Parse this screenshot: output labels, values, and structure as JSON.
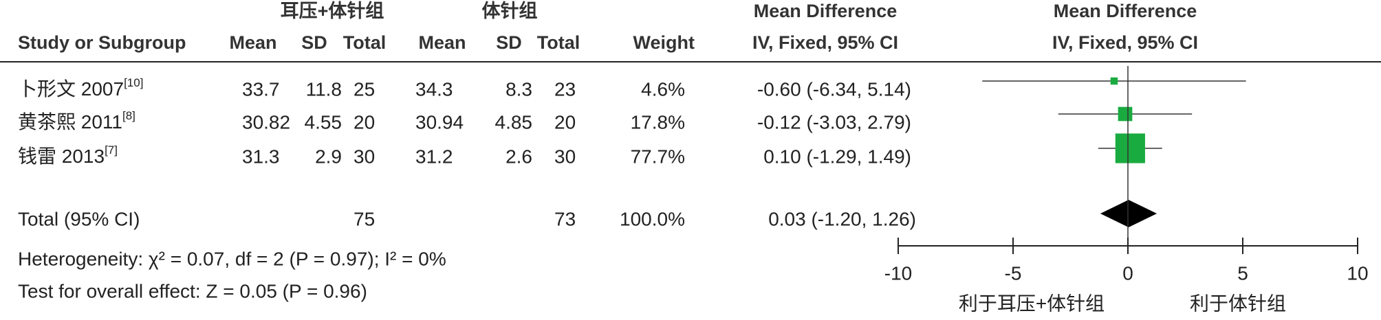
{
  "chart_data": {
    "type": "forest",
    "group_headers": [
      "耳压+体针组",
      "体针组"
    ],
    "effect_header": "Mean Difference",
    "columns": [
      "Study or Subgroup",
      "Mean",
      "SD",
      "Total",
      "Mean",
      "SD",
      "Total",
      "Weight",
      "IV, Fixed, 95% CI",
      "IV, Fixed, 95% CI"
    ],
    "color": "#1aab40",
    "studies": [
      {
        "name": "卜形文 2007",
        "ref": "[10]",
        "mean1": 33.7,
        "sd1": 11.8,
        "n1": 25,
        "mean2": 34.3,
        "sd2": 8.3,
        "n2": 23,
        "weight": 4.6,
        "weight_label": "4.6%",
        "md": -0.6,
        "lo": -6.34,
        "hi": 5.14,
        "ci_label": "-0.60 (-6.34, 5.14)"
      },
      {
        "name": "黄茶熙 2011",
        "ref": "[8]",
        "mean1": 30.82,
        "sd1": 4.55,
        "n1": 20,
        "mean2": 30.94,
        "sd2": 4.85,
        "n2": 20,
        "weight": 17.8,
        "weight_label": "17.8%",
        "md": -0.12,
        "lo": -3.03,
        "hi": 2.79,
        "ci_label": "-0.12 (-3.03, 2.79)"
      },
      {
        "name": "钱雷 2013",
        "ref": "[7]",
        "mean1": 31.3,
        "sd1": 2.9,
        "n1": 30,
        "mean2": 31.2,
        "sd2": 2.6,
        "n2": 30,
        "weight": 77.7,
        "weight_label": "77.7%",
        "md": 0.1,
        "lo": -1.29,
        "hi": 1.49,
        "ci_label": "0.10 (-1.29, 1.49)"
      }
    ],
    "total": {
      "name": "Total (95% CI)",
      "n1": 75,
      "n2": 73,
      "weight_label": "100.0%",
      "md": 0.03,
      "lo": -1.2,
      "hi": 1.26,
      "ci_label": "0.03 (-1.20, 1.26)"
    },
    "heterogeneity": "Heterogeneity: χ² = 0.07, df = 2 (P = 0.97); I² = 0%",
    "overall_effect": "Test for overall effect: Z = 0.05 (P = 0.96)",
    "xlim": [
      -10,
      10
    ],
    "xticks": [
      -10,
      -5,
      0,
      5,
      10
    ],
    "favours": [
      "利于耳压+体针组",
      "利于体针组"
    ]
  }
}
